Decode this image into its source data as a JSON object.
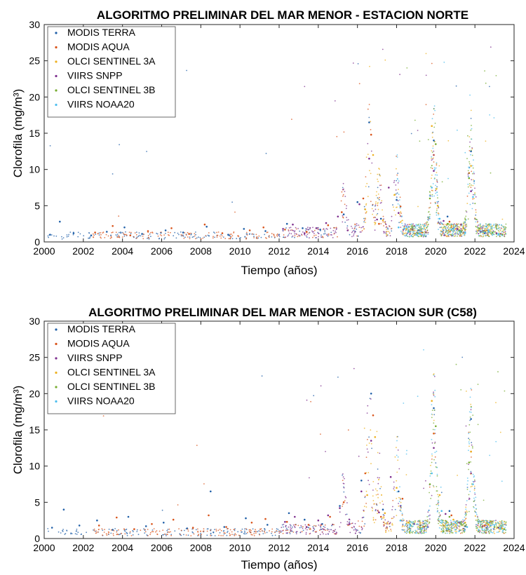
{
  "chart_data": [
    {
      "type": "scatter",
      "title": "ALGORITMO PRELIMINAR DEL MAR MENOR - ESTACION NORTE",
      "xlabel": "Tiempo (años)",
      "ylabel": "Clorofila (mg/m³)",
      "xlim": [
        2000,
        2024
      ],
      "ylim": [
        0,
        30
      ],
      "xticks": [
        2000,
        2002,
        2004,
        2006,
        2008,
        2010,
        2012,
        2014,
        2016,
        2018,
        2020,
        2022,
        2024
      ],
      "yticks": [
        0,
        5,
        10,
        15,
        20,
        25,
        30
      ],
      "grid": false,
      "legend_position": "top-left",
      "series": [
        {
          "name": "MODIS TERRA",
          "color": "#1f5fa8",
          "range": [
            2000.1,
            2022.9
          ],
          "x": [
            2000.3,
            2000.8,
            2001.5,
            2002.4,
            2003.2,
            2004.1,
            2005.0,
            2006.2,
            2007.1,
            2008.3,
            2009.4,
            2010.2,
            2011.3,
            2012.4,
            2013.2,
            2014.1,
            2015.3,
            2016.0,
            2016.6,
            2017.2,
            2018.0,
            2019.1,
            2019.9,
            2020.6,
            2021.3,
            2021.8,
            2022.5
          ],
          "y": [
            1.0,
            2.8,
            1.2,
            0.9,
            1.4,
            2.0,
            1.1,
            1.6,
            1.3,
            2.1,
            1.0,
            1.8,
            1.5,
            2.5,
            1.9,
            1.7,
            3.8,
            5.5,
            16.5,
            3.2,
            5.8,
            1.6,
            14.0,
            3.5,
            1.4,
            12.5,
            1.2
          ]
        },
        {
          "name": "MODIS AQUA",
          "color": "#d95319",
          "range": [
            2002.5,
            2022.9
          ],
          "x": [
            2002.6,
            2003.5,
            2004.4,
            2005.3,
            2006.5,
            2007.4,
            2008.2,
            2009.1,
            2010.5,
            2011.2,
            2012.3,
            2013.4,
            2014.5,
            2015.2,
            2016.3,
            2016.7,
            2017.1,
            2018.2,
            2019.3,
            2019.9,
            2020.7,
            2021.7,
            2022.4
          ],
          "y": [
            1.3,
            2.2,
            0.9,
            1.5,
            1.9,
            1.1,
            2.4,
            1.2,
            1.6,
            2.0,
            1.7,
            1.4,
            2.3,
            4.1,
            6.0,
            14.8,
            2.5,
            4.9,
            1.3,
            12.0,
            2.8,
            9.5,
            1.5
          ]
        },
        {
          "name": "OLCI SENTINEL 3A",
          "color": "#edb120",
          "range": [
            2016.3,
            2023.6
          ],
          "x": [
            2016.4,
            2016.8,
            2017.3,
            2017.9,
            2018.5,
            2019.2,
            2019.8,
            2020.1,
            2020.8,
            2021.4,
            2021.8,
            2022.6,
            2023.3
          ],
          "y": [
            4.5,
            12.0,
            3.0,
            6.5,
            1.8,
            1.2,
            16.0,
            5.0,
            2.2,
            1.9,
            10.5,
            1.6,
            1.1
          ]
        },
        {
          "name": "VIIRS SNPP",
          "color": "#7e2f8e",
          "range": [
            2012.0,
            2023.6
          ],
          "x": [
            2012.2,
            2012.7,
            2013.3,
            2013.9,
            2014.4,
            2015.0,
            2015.5,
            2016.1,
            2016.6,
            2017.0,
            2017.6,
            2018.1,
            2018.8,
            2019.5,
            2019.9,
            2020.4,
            2021.1,
            2021.8,
            2022.3,
            2023.1
          ],
          "y": [
            1.8,
            2.4,
            1.2,
            1.9,
            2.6,
            3.5,
            1.6,
            5.2,
            11.5,
            3.1,
            7.5,
            4.0,
            1.7,
            1.3,
            9.8,
            2.9,
            1.8,
            7.0,
            1.4,
            1.2
          ]
        },
        {
          "name": "OLCI SENTINEL 3B",
          "color": "#77ac30",
          "range": [
            2018.5,
            2023.6
          ],
          "x": [
            2018.6,
            2019.1,
            2019.7,
            2020.0,
            2020.6,
            2021.2,
            2021.7,
            2022.2,
            2022.9,
            2023.4
          ],
          "y": [
            1.5,
            1.2,
            6.0,
            13.5,
            2.5,
            1.6,
            8.8,
            1.9,
            1.3,
            1.0
          ]
        },
        {
          "name": "VIIRS NOAA20",
          "color": "#4dbeee",
          "range": [
            2018.0,
            2023.6
          ],
          "x": [
            2018.1,
            2018.6,
            2019.2,
            2019.8,
            2020.2,
            2020.9,
            2021.5,
            2021.9,
            2022.7,
            2023.2
          ],
          "y": [
            2.0,
            1.4,
            1.1,
            7.5,
            3.2,
            1.8,
            1.3,
            6.2,
            1.5,
            1.1
          ]
        }
      ]
    },
    {
      "type": "scatter",
      "title": "ALGORITMO PRELIMINAR DEL MAR MENOR - ESTACION SUR (C58)",
      "xlabel": "Tiempo (años)",
      "ylabel": "Clorofila (mg/m³)",
      "xlim": [
        2000,
        2024
      ],
      "ylim": [
        0,
        30
      ],
      "xticks": [
        2000,
        2002,
        2004,
        2006,
        2008,
        2010,
        2012,
        2014,
        2016,
        2018,
        2020,
        2022,
        2024
      ],
      "yticks": [
        0,
        5,
        10,
        15,
        20,
        25,
        30
      ],
      "grid": false,
      "legend_position": "top-left",
      "series": [
        {
          "name": "MODIS TERRA",
          "color": "#1f5fa8",
          "range": [
            2000.1,
            2022.9
          ],
          "x": [
            2000.4,
            2001.0,
            2001.8,
            2002.7,
            2003.5,
            2004.3,
            2005.2,
            2006.1,
            2007.3,
            2008.5,
            2009.2,
            2010.3,
            2011.4,
            2012.5,
            2013.3,
            2014.2,
            2015.1,
            2016.2,
            2016.7,
            2017.3,
            2018.1,
            2019.2,
            2019.9,
            2020.7,
            2021.5,
            2021.8,
            2022.6
          ],
          "y": [
            1.5,
            4.0,
            1.8,
            2.5,
            1.2,
            3.0,
            1.7,
            2.2,
            1.4,
            6.5,
            1.6,
            2.8,
            1.9,
            3.5,
            2.6,
            2.0,
            4.5,
            8.0,
            20.0,
            4.0,
            6.5,
            1.8,
            18.0,
            3.8,
            1.7,
            16.5,
            1.5
          ]
        },
        {
          "name": "MODIS AQUA",
          "color": "#d95319",
          "range": [
            2002.5,
            2022.9
          ],
          "x": [
            2002.8,
            2003.7,
            2004.6,
            2005.5,
            2006.6,
            2007.6,
            2008.4,
            2009.3,
            2010.6,
            2011.3,
            2012.4,
            2013.5,
            2014.6,
            2015.3,
            2016.4,
            2016.8,
            2017.2,
            2018.3,
            2019.4,
            2019.9,
            2020.8,
            2021.8,
            2022.5
          ],
          "y": [
            1.8,
            2.9,
            1.3,
            2.0,
            2.6,
            1.5,
            3.2,
            1.6,
            2.2,
            2.7,
            2.3,
            1.9,
            3.0,
            5.0,
            9.0,
            17.0,
            3.0,
            5.5,
            1.6,
            14.5,
            3.2,
            12.0,
            1.8
          ]
        },
        {
          "name": "VIIRS SNPP",
          "color": "#7e2f8e",
          "range": [
            2012.0,
            2023.6
          ],
          "x": [
            2012.3,
            2012.8,
            2013.4,
            2014.0,
            2014.5,
            2015.1,
            2015.6,
            2016.2,
            2016.7,
            2017.1,
            2017.7,
            2018.2,
            2018.9,
            2019.6,
            2019.9,
            2020.5,
            2021.2,
            2021.8,
            2022.4,
            2023.2
          ],
          "y": [
            2.3,
            3.0,
            1.6,
            2.5,
            3.2,
            4.2,
            2.0,
            6.5,
            13.5,
            3.6,
            8.5,
            4.5,
            2.0,
            1.6,
            12.5,
            3.4,
            2.2,
            9.0,
            1.7,
            1.5
          ]
        },
        {
          "name": "OLCI SENTINEL 3A",
          "color": "#edb120",
          "range": [
            2016.3,
            2023.6
          ],
          "x": [
            2016.5,
            2016.9,
            2017.4,
            2018.0,
            2018.6,
            2019.3,
            2019.8,
            2020.2,
            2020.9,
            2021.5,
            2021.8,
            2022.7,
            2023.4
          ],
          "y": [
            6.0,
            14.0,
            3.5,
            7.0,
            2.2,
            1.5,
            19.0,
            6.0,
            2.6,
            2.2,
            12.0,
            1.9,
            1.4
          ]
        },
        {
          "name": "OLCI SENTINEL 3B",
          "color": "#77ac30",
          "range": [
            2018.5,
            2023.6
          ],
          "x": [
            2018.7,
            2019.2,
            2019.7,
            2020.0,
            2020.7,
            2021.3,
            2021.7,
            2022.3,
            2023.0,
            2023.5
          ],
          "y": [
            1.9,
            1.5,
            7.5,
            15.5,
            3.0,
            2.0,
            10.5,
            2.3,
            1.6,
            1.3
          ]
        },
        {
          "name": "VIIRS NOAA20",
          "color": "#4dbeee",
          "range": [
            2018.0,
            2023.6
          ],
          "x": [
            2018.2,
            2018.7,
            2019.3,
            2019.8,
            2020.3,
            2021.0,
            2021.6,
            2021.9,
            2022.8,
            2023.3
          ],
          "y": [
            2.5,
            1.8,
            1.4,
            9.0,
            3.8,
            2.2,
            1.6,
            7.5,
            1.8,
            1.4
          ]
        }
      ]
    }
  ]
}
